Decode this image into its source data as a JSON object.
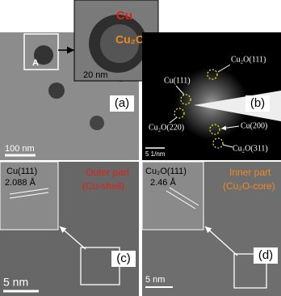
{
  "inset": {
    "cu": "Cu",
    "cu2o": "Cu₂O",
    "scale_bar": "20 nm"
  },
  "panel_a": {
    "label": "(a)",
    "marker": "A",
    "scale_bar": "100 nm"
  },
  "panel_b": {
    "label": "(b)",
    "scale_bar": "5 1/nm",
    "spots": [
      "Cu₂O(111)",
      "Cu(111)",
      "Cu₂O(220)",
      "Cu(200)",
      "Cu₂O(311)"
    ]
  },
  "panel_c": {
    "label": "(c)",
    "plane": "Cu(111)",
    "spacing": "2.088 Å",
    "title": "Outer part",
    "subtitle": "(Cu-shell)",
    "scale_bar": "5 nm"
  },
  "panel_d": {
    "label": "(d)",
    "plane": "Cu₂O(111)",
    "spacing": "2.46 Å",
    "title": "Inner part",
    "subtitle": "(Cu₂O-core)",
    "scale_bar": "5 nm"
  }
}
